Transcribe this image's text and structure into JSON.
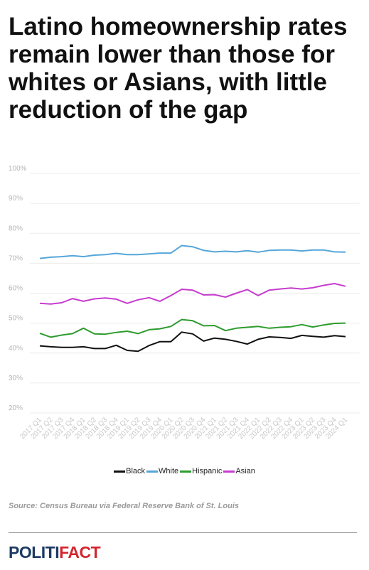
{
  "title": "Latino homeownership rates remain lower than those for whites or Asians, with little reduction of the gap",
  "source": "Source: Census Bureau via Federal Reserve Bank of St. Louis",
  "logo": {
    "part1": "POLITI",
    "part2": "FACT"
  },
  "colors": {
    "Black": "#111111",
    "White": "#55a6d9",
    "Hispanic": "#2e9b2e",
    "Asian": "#c73ccf"
  },
  "chart_data": {
    "type": "line",
    "title": "Latino homeownership rates remain lower than those for whites or Asians, with little reduction of the gap",
    "xlabel": "",
    "ylabel": "",
    "ylim": [
      20,
      100
    ],
    "y_ticks": [
      "20%",
      "30%",
      "40%",
      "50%",
      "60%",
      "70%",
      "80%",
      "90%",
      "100%"
    ],
    "grid": true,
    "legend_position": "bottom",
    "categories": [
      "2017 Q1",
      "2017 Q2",
      "2017 Q3",
      "2017 Q4",
      "2018 Q1",
      "2018 Q2",
      "2018 Q3",
      "2018 Q4",
      "2019 Q1",
      "2019 Q2",
      "2019 Q3",
      "2019 Q4",
      "2020 Q1",
      "2020 Q2",
      "2020 Q3",
      "2020 Q4",
      "2021 Q1",
      "2021 Q2",
      "2021 Q3",
      "2021 Q4",
      "2022 Q1",
      "2022 Q2",
      "2022 Q3",
      "2022 Q4",
      "2023 Q1",
      "2023 Q2",
      "2023 Q3",
      "2023 Q4",
      "2024 Q1"
    ],
    "series": [
      {
        "name": "Black",
        "values": [
          42.4,
          42.1,
          41.9,
          41.9,
          42.1,
          41.5,
          41.5,
          42.6,
          40.9,
          40.6,
          42.5,
          43.8,
          43.8,
          47.0,
          46.4,
          44.0,
          45.0,
          44.6,
          43.9,
          43.0,
          44.6,
          45.4,
          45.2,
          44.9,
          45.9,
          45.6,
          45.3,
          45.8,
          45.5
        ]
      },
      {
        "name": "White",
        "values": [
          71.6,
          72.0,
          72.2,
          72.5,
          72.2,
          72.7,
          72.9,
          73.3,
          72.9,
          72.9,
          73.1,
          73.4,
          73.4,
          75.9,
          75.5,
          74.3,
          73.8,
          74.0,
          73.8,
          74.2,
          73.7,
          74.3,
          74.4,
          74.4,
          74.1,
          74.4,
          74.4,
          73.8,
          73.7
        ]
      },
      {
        "name": "Hispanic",
        "values": [
          46.6,
          45.3,
          46.0,
          46.5,
          48.3,
          46.4,
          46.3,
          46.9,
          47.3,
          46.5,
          47.8,
          48.1,
          48.9,
          51.2,
          50.8,
          49.1,
          49.2,
          47.5,
          48.3,
          48.6,
          48.9,
          48.3,
          48.6,
          48.8,
          49.5,
          48.7,
          49.4,
          49.9,
          50.0
        ]
      },
      {
        "name": "Asian",
        "values": [
          56.6,
          56.4,
          56.8,
          58.2,
          57.3,
          58.1,
          58.4,
          58.0,
          56.6,
          57.8,
          58.5,
          57.3,
          59.2,
          61.3,
          61.0,
          59.4,
          59.5,
          58.7,
          60.0,
          61.2,
          59.2,
          61.0,
          61.4,
          61.7,
          61.4,
          61.8,
          62.6,
          63.2,
          62.3
        ]
      }
    ]
  }
}
